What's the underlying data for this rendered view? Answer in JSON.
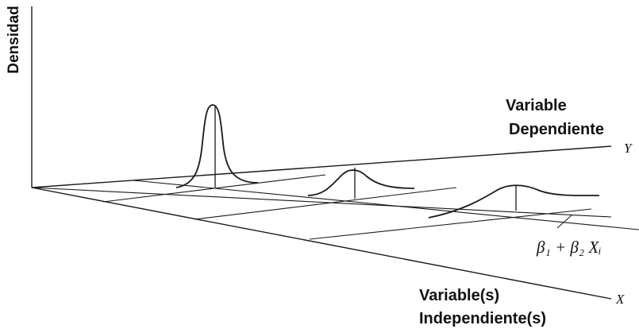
{
  "diagram": {
    "density_axis_label": "Densidad",
    "dependent_label_line1": "Variable",
    "dependent_label_line2": "Dependiente",
    "y_axis_symbol": "Y",
    "independent_label_line1": "Variable(s)",
    "independent_label_line2": "Independiente(s)",
    "x_axis_symbol": "X",
    "regression_line_label": "β₁ + β₂ Xᵢ"
  },
  "colors": {
    "ink": "#1a1a1a",
    "background": "#ffffff"
  }
}
